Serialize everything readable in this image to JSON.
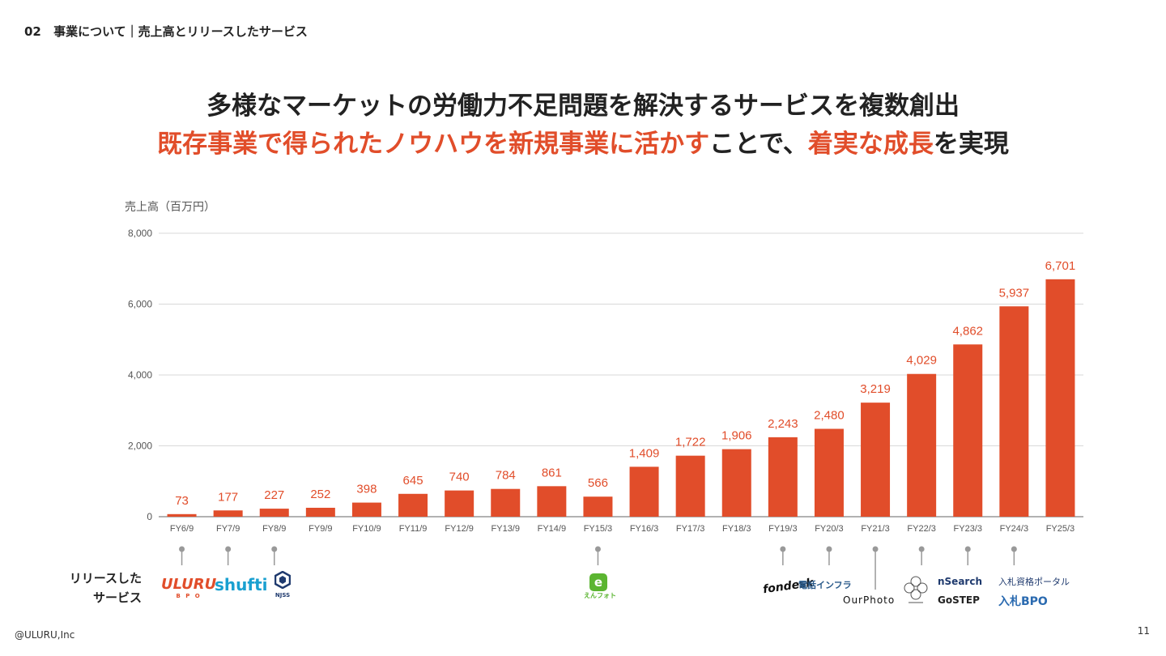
{
  "header": {
    "section_number": "02",
    "section_title": "事業について｜売上高とリリースしたサービス"
  },
  "headline": {
    "line1": "多様なマーケットの労働力不足問題を解決するサービスを複数創出",
    "line2_red1": "既存事業で得られたノウハウを新規事業に活かす",
    "line2_dark1": "ことで、",
    "line2_red2": "着実な成長",
    "line2_dark2": "を実現"
  },
  "colors": {
    "accent": "#e14d2a",
    "text": "#222222",
    "grid": "#d9d9d9",
    "axis_text": "#555555",
    "connector": "#999999"
  },
  "chart_data": {
    "type": "bar",
    "ylabel": "売上高（百万円）",
    "ylim": [
      0,
      8000
    ],
    "yticks": [
      "0",
      "2,000",
      "4,000",
      "6,000",
      "8,000"
    ],
    "grid": true,
    "categories": [
      "FY6/9",
      "FY7/9",
      "FY8/9",
      "FY9/9",
      "FY10/9",
      "FY11/9",
      "FY12/9",
      "FY13/9",
      "FY14/9",
      "FY15/3",
      "FY16/3",
      "FY17/3",
      "FY18/3",
      "FY19/3",
      "FY20/3",
      "FY21/3",
      "FY22/3",
      "FY23/3",
      "FY24/3",
      "FY25/3"
    ],
    "values": [
      73,
      177,
      227,
      252,
      398,
      645,
      740,
      784,
      861,
      566,
      1409,
      1722,
      1906,
      2243,
      2480,
      3219,
      4029,
      4862,
      5937,
      6701
    ],
    "labels": [
      "73",
      "177",
      "227",
      "252",
      "398",
      "645",
      "740",
      "784",
      "861",
      "566",
      "1,409",
      "1,722",
      "1,906",
      "2,243",
      "2,480",
      "3,219",
      "4,029",
      "4,862",
      "5,937",
      "6,701"
    ]
  },
  "release_label": [
    "リリースした",
    "サービス"
  ],
  "services": [
    {
      "period": "FY6/9",
      "name": "ULURU",
      "sub": "B P O"
    },
    {
      "period": "FY7/9",
      "name": "shufti"
    },
    {
      "period": "FY8/9",
      "name": "NJSS"
    },
    {
      "period": "FY15/3",
      "name": "えんフォト"
    },
    {
      "period": "FY19/3",
      "name": "fondesk"
    },
    {
      "period": "FY20/3",
      "name": "電話インフラ"
    },
    {
      "period": "FY21/3",
      "name": "OurPhoto"
    },
    {
      "period": "FY22/3",
      "name": "ロゴ"
    },
    {
      "period": "FY23/3",
      "name": "nSearch"
    },
    {
      "period": "FY23/3",
      "name": "GoSTEP"
    },
    {
      "period": "FY24/3",
      "name": "入札資格ポータル"
    },
    {
      "period": "FY24/3",
      "name": "入札BPO"
    }
  ],
  "footer": {
    "company": "@ULURU,Inc",
    "page": "11"
  }
}
